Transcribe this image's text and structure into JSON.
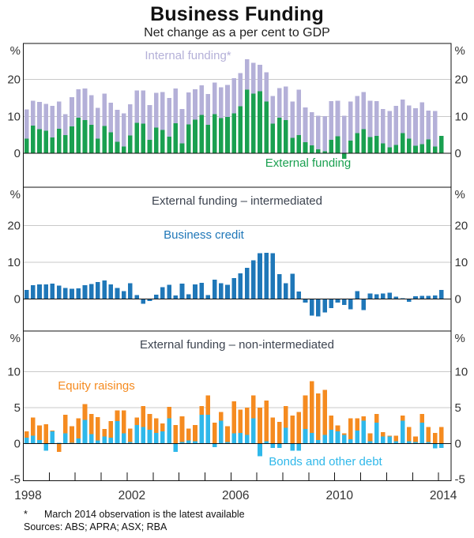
{
  "title": "Business Funding",
  "subtitle": "Net change as a per cent to GDP",
  "footnote_marker": "*",
  "footnote": "March 2014 observation is the latest available",
  "sources": "Sources: ABS; APRA; ASX; RBA",
  "y_axis_unit": "%",
  "colors": {
    "green": "#1aa050",
    "purple": "#b4b0d8",
    "blue": "#1f77b8",
    "lightblue": "#2fb8ea",
    "orange": "#f58b20",
    "gridline": "#c9c9c9",
    "axis": "#111111"
  },
  "x": {
    "frequency": "quarterly",
    "start": "1998 Q1",
    "end": "2014 Q1",
    "tick_years": [
      1999,
      2000,
      2001,
      2002,
      2003,
      2004,
      2005,
      2006,
      2007,
      2008,
      2009,
      2010,
      2011,
      2012,
      2013,
      2014
    ],
    "label_years": [
      1998,
      2002,
      2006,
      2010,
      2014
    ]
  },
  "chart_data": [
    {
      "type": "bar",
      "stacked": true,
      "panel_title": "",
      "yticks": [
        0,
        10,
        20
      ],
      "ylim": [
        -9.2,
        29.8
      ],
      "series": [
        {
          "name": "External funding",
          "color_key": "green",
          "values": [
            4.0,
            7.5,
            6.5,
            6.1,
            4.3,
            6.7,
            4.9,
            7.3,
            9.7,
            9.0,
            7.7,
            4.0,
            7.4,
            5.7,
            3.1,
            1.8,
            4.8,
            8.3,
            8.0,
            3.7,
            7.0,
            6.3,
            4.5,
            8.2,
            2.7,
            7.8,
            9.1,
            10.4,
            7.7,
            10.6,
            9.5,
            9.9,
            10.8,
            12.8,
            17.3,
            16.2,
            16.8,
            14.0,
            8.0,
            9.7,
            9.0,
            4.2,
            4.9,
            3.0,
            2.2,
            1.1,
            0.6,
            3.7,
            4.6,
            -1.5,
            3.4,
            5.5,
            6.5,
            4.4,
            4.7,
            2.7,
            1.6,
            2.3,
            5.5,
            4.0,
            2.0,
            2.5,
            3.8,
            1.8,
            4.7
          ]
        },
        {
          "name": "Internal funding*",
          "color_key": "purple",
          "values": [
            7.9,
            6.8,
            7.4,
            7.3,
            8.6,
            7.3,
            5.7,
            7.9,
            7.7,
            8.6,
            8.1,
            8.3,
            8.8,
            8.0,
            8.7,
            9.0,
            8.5,
            8.7,
            9.1,
            9.4,
            9.4,
            10.3,
            10.5,
            9.4,
            9.3,
            8.7,
            8.3,
            8.0,
            8.4,
            8.6,
            8.4,
            8.6,
            9.6,
            9.0,
            8.2,
            8.3,
            7.2,
            8.0,
            7.5,
            8.0,
            9.1,
            9.9,
            12.4,
            9.4,
            9.0,
            9.1,
            9.5,
            10.5,
            9.7,
            10.2,
            10.6,
            10.1,
            10.1,
            9.9,
            9.5,
            9.3,
            9.9,
            10.6,
            9.1,
            9.0,
            10.2,
            11.3,
            7.8,
            9.7,
            0.0
          ]
        }
      ]
    },
    {
      "type": "bar",
      "stacked": false,
      "panel_title": "External funding – intermediated",
      "yticks": [
        0,
        10,
        20
      ],
      "ylim": [
        -8.7,
        30.4
      ],
      "series": [
        {
          "name": "Business credit",
          "color_key": "blue",
          "values": [
            2.5,
            3.8,
            4.0,
            4.0,
            4.2,
            3.7,
            3.0,
            2.8,
            2.9,
            3.8,
            4.1,
            4.6,
            5.0,
            4.0,
            3.0,
            2.2,
            4.3,
            1.1,
            -1.3,
            -0.5,
            1.2,
            3.2,
            3.9,
            1.0,
            4.2,
            1.3,
            4.0,
            4.4,
            1.1,
            5.3,
            4.3,
            3.9,
            5.7,
            7.0,
            8.5,
            10.5,
            12.5,
            12.6,
            12.5,
            6.8,
            4.3,
            6.9,
            2.0,
            -1.0,
            -4.5,
            -4.7,
            -3.7,
            -2.5,
            -1.0,
            -1.6,
            -2.8,
            2.2,
            -3.0,
            1.5,
            1.3,
            1.5,
            1.7,
            0.6,
            0.2,
            -0.7,
            0.8,
            0.9,
            0.9,
            1.0,
            2.5
          ]
        }
      ]
    },
    {
      "type": "bar",
      "stacked": true,
      "panel_title": "External funding – non-intermediated",
      "yticks": [
        -5,
        0,
        5,
        10
      ],
      "ylim": [
        -5.2,
        15.7
      ],
      "series": [
        {
          "name": "Bonds and other debt",
          "color_key": "lightblue",
          "values": [
            0.8,
            1.1,
            0.5,
            -1.0,
            1.7,
            0.1,
            1.4,
            0.1,
            0.7,
            3.3,
            1.3,
            0.4,
            1.0,
            0.8,
            3.1,
            1.4,
            0.2,
            2.6,
            2.3,
            1.9,
            1.5,
            1.7,
            3.5,
            -1.2,
            0.2,
            0.4,
            0.3,
            4.0,
            4.0,
            -0.5,
            3.2,
            0.2,
            1.4,
            1.5,
            1.2,
            3.5,
            -1.8,
            0.3,
            -0.6,
            -0.6,
            2.2,
            -1.0,
            -1.0,
            2.0,
            1.5,
            0.5,
            1.2,
            1.9,
            1.7,
            1.2,
            0.6,
            1.8,
            3.2,
            0.3,
            2.9,
            1.0,
            1.0,
            0.3,
            3.2,
            0.3,
            0.2,
            2.9,
            0.2,
            -0.7,
            -0.6
          ]
        },
        {
          "name": "Equity raisings",
          "color_key": "orange",
          "values": [
            0.9,
            2.5,
            2.0,
            2.7,
            0.1,
            -1.2,
            2.6,
            2.3,
            2.8,
            2.2,
            2.8,
            3.3,
            1.0,
            2.3,
            1.5,
            3.2,
            1.9,
            1.0,
            2.9,
            2.2,
            2.0,
            1.1,
            1.6,
            2.6,
            3.6,
            1.7,
            2.3,
            1.2,
            2.7,
            2.9,
            1.2,
            2.2,
            4.5,
            3.2,
            3.8,
            3.2,
            5.0,
            5.7,
            3.6,
            3.0,
            3.0,
            3.9,
            4.4,
            4.7,
            7.2,
            6.5,
            6.3,
            2.0,
            0.8,
            0.2,
            2.9,
            1.7,
            0.6,
            1.1,
            1.2,
            0.6,
            0.1,
            0.8,
            0.7,
            2.0,
            0.8,
            1.2,
            2.1,
            1.5,
            2.3
          ]
        }
      ]
    }
  ]
}
